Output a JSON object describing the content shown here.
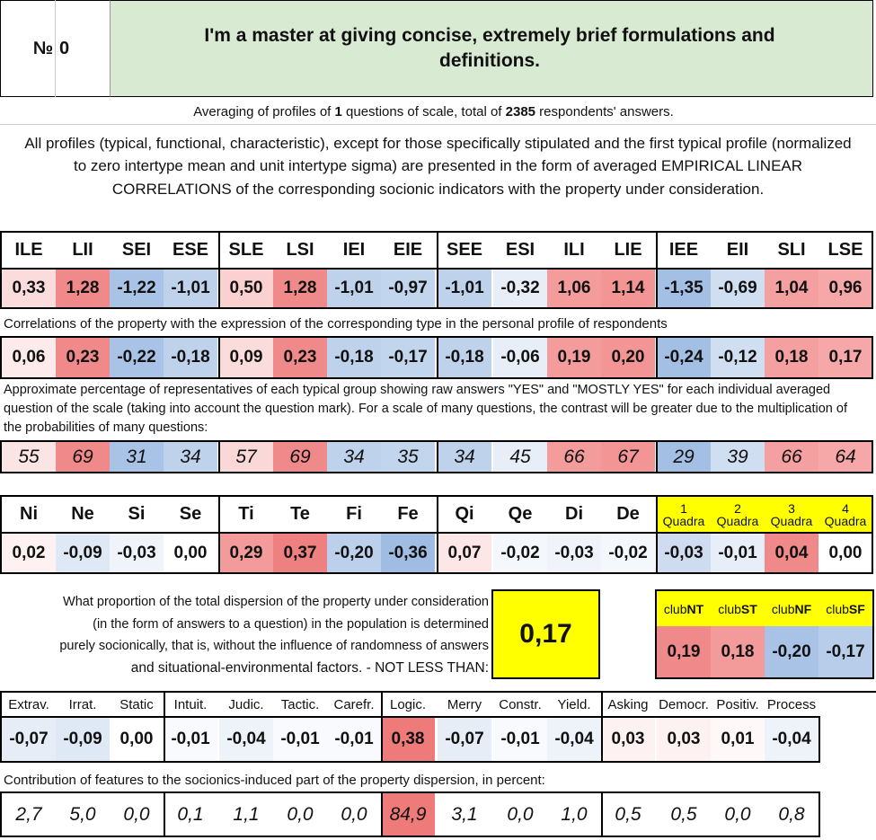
{
  "header": {
    "number_label": "№",
    "number_value": "0",
    "title": "I'm a master at giving concise, extremely brief formulations and definitions."
  },
  "summary": {
    "prefix": "Averaging of profiles of ",
    "questions": "1",
    "middle": " questions of scale, total of ",
    "respondents": "2385",
    "suffix": " respondents' answers."
  },
  "intro_text": "All profiles (typical, functional, characteristic), except for those specifically stipulated and the first typical profile (normalized to zero intertype mean and unit intertype sigma) are presented in the form of averaged EMPIRICAL LINEAR CORRELATIONS of the corresponding socionic indicators with the property under consideration.",
  "types": {
    "headers": [
      "ILE",
      "LII",
      "SEI",
      "ESE",
      "SLE",
      "LSI",
      "IEI",
      "EIE",
      "SEE",
      "ESI",
      "ILI",
      "LIE",
      "IEE",
      "EII",
      "SLI",
      "LSE"
    ],
    "profile": [
      "0,33",
      "1,28",
      "-1,22",
      "-1,01",
      "0,50",
      "1,28",
      "-1,01",
      "-0,97",
      "-1,01",
      "-0,32",
      "1,06",
      "1,14",
      "-1,35",
      "-0,69",
      "1,04",
      "0,96"
    ],
    "profile_colors": [
      "#fbdcdc",
      "#f08a8a",
      "#a9c3e6",
      "#bed2ec",
      "#fbd0d0",
      "#f08a8a",
      "#bed2ec",
      "#c1d5ec",
      "#bed2ec",
      "#e8eef8",
      "#f49c9c",
      "#f39595",
      "#a3bfe4",
      "#d0def2",
      "#f4a0a0",
      "#f6a8a8"
    ],
    "corr_caption": "Correlations of the property with the expression of the corresponding type in the personal profile of respondents",
    "corr": [
      "0,06",
      "0,23",
      "-0,22",
      "-0,18",
      "0,09",
      "0,23",
      "-0,18",
      "-0,17",
      "-0,18",
      "-0,06",
      "0,19",
      "0,20",
      "-0,24",
      "-0,12",
      "0,18",
      "0,17"
    ],
    "corr_colors": [
      "#fdeaea",
      "#f08a8a",
      "#a9c3e6",
      "#bed2ec",
      "#fbdcdc",
      "#f08a8a",
      "#bed2ec",
      "#c1d5ec",
      "#bed2ec",
      "#e8eef8",
      "#f49c9c",
      "#f39595",
      "#a3bfe4",
      "#d0def2",
      "#f4a0a0",
      "#f6a8a8"
    ],
    "pct_caption": "Approximate percentage of representatives of each typical group showing raw answers \"YES\" and \"MOSTLY YES\" for each individual averaged question of the scale (taking into account the question mark). For a scale of many questions, the contrast will be greater due to the multiplication of the probabilities of many questions:",
    "pct": [
      "55",
      "69",
      "31",
      "34",
      "57",
      "69",
      "34",
      "35",
      "34",
      "45",
      "66",
      "67",
      "29",
      "39",
      "66",
      "64"
    ],
    "pct_colors": [
      "#fbe4e4",
      "#f08a8a",
      "#a9c3e6",
      "#bed2ec",
      "#fbd8d8",
      "#f08a8a",
      "#bed2ec",
      "#c1d5ec",
      "#bed2ec",
      "#e8eef8",
      "#f49c9c",
      "#f39595",
      "#a3bfe4",
      "#d0def2",
      "#f4a0a0",
      "#f6a8a8"
    ]
  },
  "functions": {
    "headers": [
      "Ni",
      "Ne",
      "Si",
      "Se",
      "Ti",
      "Te",
      "Fi",
      "Fe",
      "Qi",
      "Qe",
      "Di",
      "De"
    ],
    "values": [
      "0,02",
      "-0,09",
      "-0,03",
      "0,00",
      "0,29",
      "0,37",
      "-0,20",
      "-0,36",
      "0,07",
      "-0,02",
      "-0,03",
      "-0,02"
    ],
    "colors": [
      "#fdf1f1",
      "#dfe8f5",
      "#f0f4fa",
      "#ffffff",
      "#f39a9a",
      "#ee8080",
      "#bcd0ec",
      "#a0bce2",
      "#fce6e6",
      "#f4f7fb",
      "#f0f4fa",
      "#f4f7fb"
    ],
    "quadra_numbers": [
      "1",
      "2",
      "3",
      "4"
    ],
    "quadra_word": "Quadra",
    "quadra_values": [
      "-0,03",
      "-0,01",
      "0,04",
      "0,00"
    ],
    "quadra_colors": [
      "#cfdcf0",
      "#e7eef8",
      "#f08a8a",
      "#ffffff"
    ],
    "quadra_header_color": "#ffff00"
  },
  "dispersion": {
    "text_lines": [
      "What proportion of the total dispersion of the property under consideration",
      "(in the form of answers to a question) in the population is determined",
      "purely socionically, that is, without the influence of randomness of answers",
      "and situational-environmental factors. - NOT LESS THAN:"
    ],
    "value": "0,17",
    "value_bg": "#ffff00"
  },
  "clubs": {
    "prefix": "club",
    "names": [
      "NT",
      "ST",
      "NF",
      "SF"
    ],
    "values": [
      "0,19",
      "0,18",
      "-0,20",
      "-0,17"
    ],
    "colors": [
      "#f08a8a",
      "#f39a9a",
      "#a9c3e6",
      "#b8cde9"
    ],
    "header_color": "#ffff00"
  },
  "traits": {
    "headers": [
      "Extrav.",
      "Irrat.",
      "Static",
      "Intuit.",
      "Judic.",
      "Tactic.",
      "Carefr.",
      "Logic.",
      "Merry",
      "Constr.",
      "Yield.",
      "Asking",
      "Democr.",
      "Positiv.",
      "Process"
    ],
    "values": [
      "-0,07",
      "-0,09",
      "0,00",
      "-0,01",
      "-0,04",
      "-0,01",
      "-0,01",
      "0,38",
      "-0,07",
      "-0,01",
      "-0,04",
      "0,03",
      "0,03",
      "0,01",
      "-0,04"
    ],
    "colors": [
      "#e6edf7",
      "#dfe8f5",
      "#ffffff",
      "#f8fafd",
      "#eef3fa",
      "#f8fafd",
      "#f8fafd",
      "#ee7a7a",
      "#e6edf7",
      "#f8fafd",
      "#eef3fa",
      "#fdf1f1",
      "#fdf1f1",
      "#fef8f8",
      "#eef3fa"
    ],
    "contrib_caption": "Contribution of features to the sociоnics-induced part of the property dispersion, in percent:",
    "contrib": [
      "2,7",
      "5,0",
      "0,0",
      "0,1",
      "1,1",
      "0,0",
      "0,0",
      "84,9",
      "3,1",
      "0,0",
      "1,0",
      "0,5",
      "0,5",
      "0,0",
      "0,8"
    ],
    "contrib_colors": [
      "#ffffff",
      "#ffffff",
      "#ffffff",
      "#ffffff",
      "#ffffff",
      "#ffffff",
      "#ffffff",
      "#ee7a7a",
      "#ffffff",
      "#ffffff",
      "#ffffff",
      "#ffffff",
      "#ffffff",
      "#ffffff",
      "#ffffff"
    ]
  }
}
